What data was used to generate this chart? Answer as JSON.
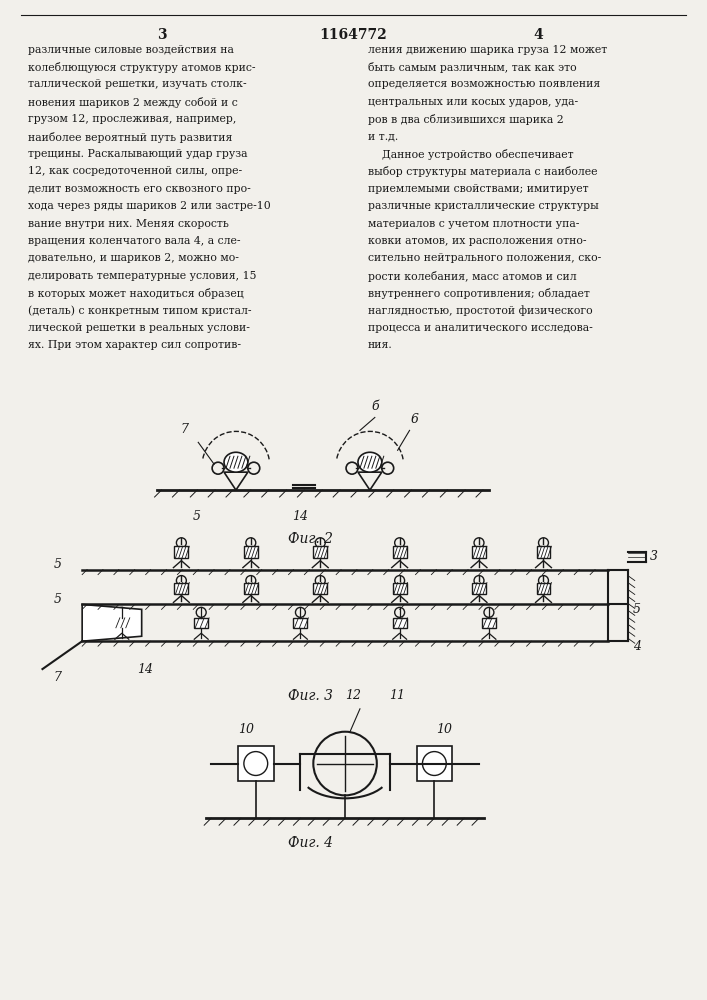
{
  "page_width": 7.07,
  "page_height": 10.0,
  "bg_color": "#f2f0eb",
  "header_page_left": "3",
  "header_patent": "1164772",
  "header_page_right": "4",
  "col_left_lines": [
    "различные силовые воздействия на",
    "колеблющуюся структуру атомов крис-",
    "таллической решетки, изучать столк-",
    "новения шариков 2 между собой и с",
    "грузом 12, прослеживая, например,",
    "наиболее вероятный путь развития",
    "трещины. Раскалывающий удар груза",
    "12, как сосредоточенной силы, опре-",
    "делит возможность его сквозного про-",
    "хода через ряды шариков 2 или застре-10",
    "вание внутри них. Меняя скорость",
    "вращения коленчатого вала 4, а сле-",
    "довательно, и шариков 2, можно мо-",
    "делировать температурные условия, 15",
    "в которых может находиться образец",
    "(деталь) с конкретным типом кристал-",
    "лической решетки в реальных услови-",
    "ях. При этом характер сил сопротив-"
  ],
  "col_right_lines": [
    "ления движению шарика груза 12 может",
    "быть самым различным, так как это",
    "определяется возможностью появления",
    "центральных или косых ударов, уда-",
    "ров в два сблизившихся шарика 2",
    "и т.д.",
    "    Данное устройство обеспечивает",
    "выбор структуры материала с наиболее",
    "приемлемыми свойствами; имитирует",
    "различные кристаллические структуры",
    "материалов с учетом плотности упа-",
    "ковки атомов, их расположения отно-",
    "сительно нейтрального положения, ско-",
    "рости колебания, масс атомов и сил",
    "внутреннего сопротивления; обладает",
    "наглядностью, простотой физического",
    "процесса и аналитического исследова-",
    "ния."
  ],
  "fig2_label": "Фиг. 2",
  "fig3_label": "Фиг. 3",
  "fig4_label": "Фиг. 4",
  "text_color": "#1a1a1a",
  "line_color": "#1a1a1a"
}
